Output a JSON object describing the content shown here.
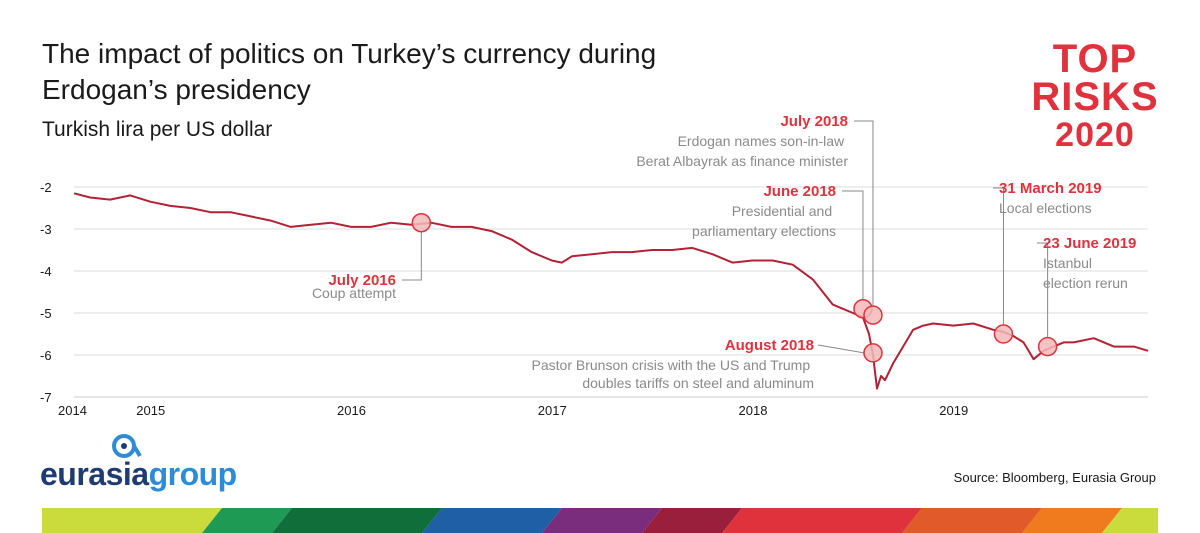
{
  "header": {
    "title": "The impact of politics on Turkey’s currency during Erdogan’s presidency",
    "subtitle": "Turkish lira per US dollar"
  },
  "brand": {
    "line1": "TOP",
    "line2": "RISKS",
    "line3": "2020",
    "color": "#e0323c"
  },
  "logo": {
    "part1": "eurasia",
    "part2": "group"
  },
  "source": "Source: Bloomberg, Eurasia Group",
  "colors": {
    "line": "#b22234",
    "annotation": "#e0323c",
    "marker_fill": "#f2b8b8",
    "grid": "#dddddd",
    "axis_text": "#1a1a1a",
    "annotation_text": "#8a8a8a"
  },
  "chart_data": {
    "type": "line",
    "title": "The impact of politics on Turkey’s currency during Erdogan’s presidency",
    "subtitle": "Turkish lira per US dollar",
    "ylim": [
      -7,
      -2
    ],
    "yticks": [
      -2,
      -3,
      -4,
      -5,
      -6,
      -7
    ],
    "ytick_labels": [
      "-2",
      "-3",
      "-4",
      "-5",
      "-6",
      "-7"
    ],
    "xlim": [
      2014.62,
      2019.97
    ],
    "xticks": [
      2014.62,
      2015.0,
      2016.0,
      2017.0,
      2018.0,
      2019.0
    ],
    "xtick_labels": [
      "2014",
      "2015",
      "2016",
      "2017",
      "2018",
      "2019"
    ],
    "grid": true,
    "series": [
      {
        "x": [
          2014.62,
          2014.7,
          2014.8,
          2014.9,
          2015.0,
          2015.1,
          2015.2,
          2015.3,
          2015.4,
          2015.5,
          2015.6,
          2015.7,
          2015.8,
          2015.9,
          2016.0,
          2016.1,
          2016.2,
          2016.3,
          2016.4,
          2016.5,
          2016.6,
          2016.7,
          2016.8,
          2016.9,
          2017.0,
          2017.05,
          2017.1,
          2017.2,
          2017.3,
          2017.4,
          2017.5,
          2017.6,
          2017.7,
          2017.8,
          2017.9,
          2018.0,
          2018.1,
          2018.2,
          2018.3,
          2018.35,
          2018.4,
          2018.45,
          2018.5,
          2018.55,
          2018.58,
          2018.6,
          2018.62,
          2018.64,
          2018.66,
          2018.7,
          2018.75,
          2018.8,
          2018.85,
          2018.9,
          2019.0,
          2019.1,
          2019.2,
          2019.25,
          2019.3,
          2019.35,
          2019.4,
          2019.45,
          2019.5,
          2019.55,
          2019.6,
          2019.7,
          2019.8,
          2019.9,
          2019.97
        ],
        "y": [
          -2.15,
          -2.25,
          -2.3,
          -2.2,
          -2.35,
          -2.45,
          -2.5,
          -2.6,
          -2.6,
          -2.7,
          -2.8,
          -2.95,
          -2.9,
          -2.85,
          -2.95,
          -2.95,
          -2.85,
          -2.9,
          -2.85,
          -2.95,
          -2.95,
          -3.05,
          -3.25,
          -3.55,
          -3.75,
          -3.8,
          -3.65,
          -3.6,
          -3.55,
          -3.55,
          -3.5,
          -3.5,
          -3.45,
          -3.6,
          -3.8,
          -3.75,
          -3.75,
          -3.85,
          -4.2,
          -4.5,
          -4.8,
          -4.9,
          -5.0,
          -5.1,
          -5.5,
          -6.0,
          -6.8,
          -6.5,
          -6.6,
          -6.2,
          -5.8,
          -5.4,
          -5.3,
          -5.25,
          -5.3,
          -5.25,
          -5.4,
          -5.45,
          -5.55,
          -5.7,
          -6.1,
          -5.9,
          -5.8,
          -5.7,
          -5.7,
          -5.6,
          -5.8,
          -5.8,
          -5.9
        ]
      }
    ],
    "annotations": [
      {
        "date": "July 2016",
        "text": "Coup attempt",
        "x": 2016.35,
        "y": -2.85
      },
      {
        "date": "June 2018",
        "text": "Presidential and parliamentary elections",
        "x": 2018.55,
        "y": -4.9
      },
      {
        "date": "July 2018",
        "text": "Erdogan names son-in-law Berat Albayrak as finance minister",
        "x": 2018.6,
        "y": -5.05
      },
      {
        "date": "August 2018",
        "text": "Pastor Brunson crisis with the US and Trump doubles tariffs on steel and aluminum",
        "x": 2018.6,
        "y": -5.95
      },
      {
        "date": "31 March 2019",
        "text": "Local elections",
        "x": 2019.25,
        "y": -5.5
      },
      {
        "date": "23 June 2019",
        "text": "Istanbul election rerun",
        "x": 2019.47,
        "y": -5.8
      }
    ]
  }
}
